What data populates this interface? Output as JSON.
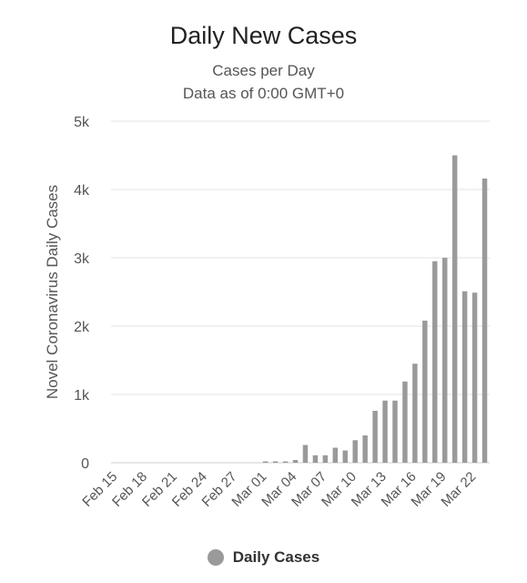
{
  "chart_data": {
    "type": "bar",
    "title": "Daily New Cases",
    "subtitle": [
      "Cases per Day",
      "Data as of 0:00 GMT+0"
    ],
    "ylabel": "Novel Coronavirus Daily Cases",
    "xlabel": "",
    "ylim": [
      0,
      5000
    ],
    "yticks": [
      0,
      1000,
      2000,
      3000,
      4000,
      5000
    ],
    "ytick_labels": [
      "0",
      "1k",
      "2k",
      "3k",
      "4k",
      "5k"
    ],
    "categories": [
      "Feb 15",
      "Feb 16",
      "Feb 17",
      "Feb 18",
      "Feb 19",
      "Feb 20",
      "Feb 21",
      "Feb 22",
      "Feb 23",
      "Feb 24",
      "Feb 25",
      "Feb 26",
      "Feb 27",
      "Feb 28",
      "Feb 29",
      "Mar 01",
      "Mar 02",
      "Mar 03",
      "Mar 04",
      "Mar 05",
      "Mar 06",
      "Mar 07",
      "Mar 08",
      "Mar 09",
      "Mar 10",
      "Mar 11",
      "Mar 12",
      "Mar 13",
      "Mar 14",
      "Mar 15",
      "Mar 16",
      "Mar 17",
      "Mar 18",
      "Mar 19",
      "Mar 20",
      "Mar 21",
      "Mar 22",
      "Mar 23"
    ],
    "xtick_labels": [
      "Feb 15",
      "Feb 18",
      "Feb 21",
      "Feb 24",
      "Feb 27",
      "Mar 01",
      "Mar 04",
      "Mar 07",
      "Mar 10",
      "Mar 13",
      "Mar 16",
      "Mar 19",
      "Mar 22"
    ],
    "series": [
      {
        "name": "Daily Cases",
        "color": "#9a9a9a",
        "values": [
          0,
          0,
          0,
          0,
          0,
          0,
          0,
          0,
          0,
          0,
          0,
          0,
          0,
          0,
          0,
          20,
          20,
          20,
          40,
          260,
          110,
          110,
          220,
          180,
          330,
          400,
          760,
          910,
          910,
          1190,
          1450,
          2080,
          2950,
          3000,
          4500,
          2510,
          2490,
          4160
        ]
      }
    ],
    "grid": true,
    "legend_position": "bottom"
  }
}
